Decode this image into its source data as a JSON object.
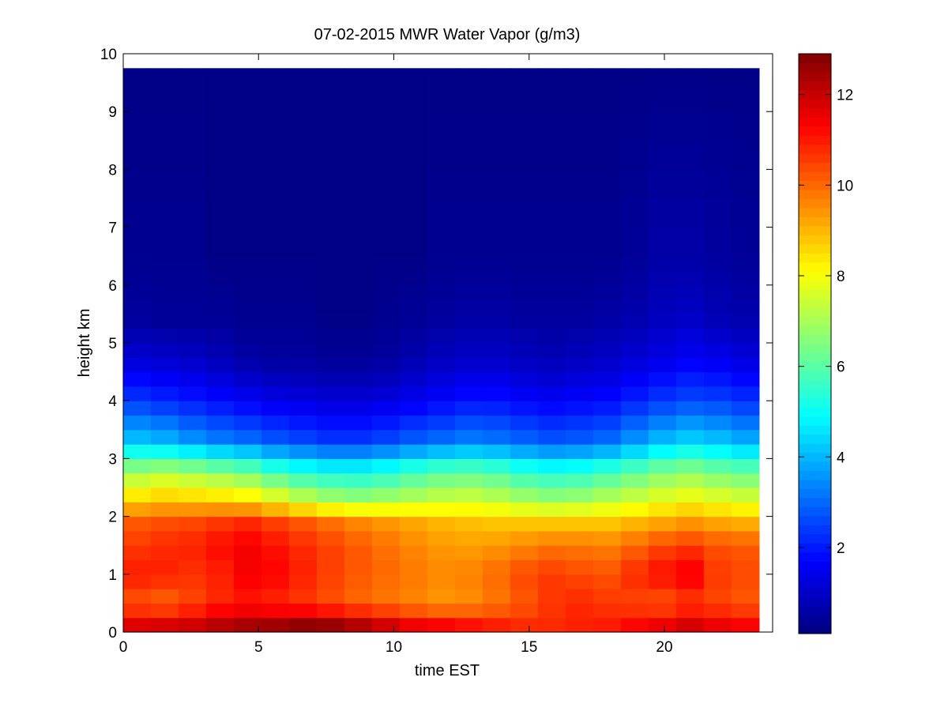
{
  "chart_data": {
    "type": "heatmap",
    "title": "07-02-2015 MWR Water Vapor (g/m3)",
    "xlabel": "time EST",
    "ylabel": "height km",
    "xlim": [
      0,
      24
    ],
    "ylim": [
      0,
      10
    ],
    "x_ticks": [
      0,
      5,
      10,
      15,
      20
    ],
    "y_ticks": [
      0,
      1,
      2,
      3,
      4,
      5,
      6,
      7,
      8,
      9,
      10
    ],
    "colorbar": {
      "colormap": "jet",
      "range": [
        0.1,
        12.9
      ],
      "ticks": [
        2,
        4,
        6,
        8,
        10,
        12
      ],
      "position": "right"
    },
    "grid": false,
    "x_edges": [
      0,
      23.5
    ],
    "data_top_km": 9.75,
    "time_columns": 23,
    "column_times_est": [
      0.0,
      1.0,
      2.0,
      3.0,
      4.0,
      5.0,
      6.0,
      7.0,
      8.0,
      9.0,
      10.0,
      11.0,
      12.0,
      13.0,
      14.0,
      15.0,
      16.0,
      17.0,
      18.0,
      19.0,
      20.0,
      21.0,
      22.0
    ],
    "height_levels_km": [
      0.0,
      0.25,
      0.5,
      0.75,
      1.0,
      1.25,
      1.5,
      1.75,
      2.0,
      2.25,
      2.5,
      2.75,
      3.0,
      3.25,
      3.5,
      3.75,
      4.0,
      4.25,
      4.5,
      4.75,
      5.0,
      5.25,
      5.5,
      5.75,
      6.0,
      6.25,
      6.5,
      6.75,
      7.0,
      7.5,
      8.0,
      8.5,
      9.0,
      9.5
    ],
    "value_profiles": {
      "note_levels_km": [
        0.1,
        0.5,
        1.0,
        1.5,
        1.9,
        2.3,
        2.8,
        3.3,
        4.0,
        4.7,
        5.4,
        6.5,
        9.75
      ],
      "columns": [
        [
          11.8,
          10.2,
          11.0,
          10.6,
          10.2,
          8.6,
          6.8,
          4.2,
          2.4,
          1.2,
          0.5,
          0.3,
          0.2
        ],
        [
          11.9,
          10.0,
          10.9,
          10.8,
          10.3,
          8.8,
          7.0,
          4.0,
          2.2,
          1.1,
          0.4,
          0.3,
          0.2
        ],
        [
          12.0,
          10.4,
          10.7,
          10.9,
          10.4,
          8.7,
          6.8,
          3.6,
          2.0,
          1.0,
          0.4,
          0.3,
          0.2
        ],
        [
          12.3,
          10.8,
          10.9,
          11.2,
          10.6,
          8.6,
          6.5,
          3.3,
          1.8,
          0.8,
          0.4,
          0.2,
          0.2
        ],
        [
          12.5,
          11.0,
          11.4,
          11.4,
          10.8,
          8.4,
          6.2,
          3.1,
          1.6,
          0.6,
          0.3,
          0.2,
          0.2
        ],
        [
          12.6,
          10.8,
          11.3,
          11.1,
          10.5,
          7.9,
          5.6,
          2.8,
          1.4,
          0.5,
          0.3,
          0.2,
          0.2
        ],
        [
          12.8,
          10.6,
          10.9,
          10.8,
          10.2,
          7.4,
          5.2,
          2.6,
          1.3,
          0.5,
          0.3,
          0.2,
          0.2
        ],
        [
          12.7,
          10.3,
          10.5,
          10.5,
          9.9,
          7.0,
          5.0,
          2.4,
          1.2,
          0.4,
          0.2,
          0.2,
          0.2
        ],
        [
          12.4,
          10.0,
          10.2,
          10.2,
          9.6,
          6.8,
          5.0,
          2.4,
          1.2,
          0.4,
          0.2,
          0.2,
          0.2
        ],
        [
          12.0,
          9.8,
          10.0,
          9.9,
          9.4,
          7.0,
          5.2,
          2.6,
          1.3,
          0.5,
          0.3,
          0.2,
          0.2
        ],
        [
          11.6,
          9.6,
          9.8,
          9.6,
          9.2,
          7.2,
          5.6,
          2.9,
          1.5,
          0.7,
          0.4,
          0.2,
          0.2
        ],
        [
          11.4,
          9.4,
          9.6,
          9.4,
          9.0,
          7.4,
          5.9,
          3.1,
          1.7,
          0.9,
          0.5,
          0.3,
          0.2
        ],
        [
          11.2,
          9.5,
          9.7,
          9.3,
          8.9,
          7.5,
          6.0,
          3.3,
          1.9,
          1.0,
          0.6,
          0.3,
          0.2
        ],
        [
          11.0,
          9.8,
          10.0,
          9.4,
          8.8,
          7.3,
          5.8,
          3.2,
          1.9,
          1.0,
          0.6,
          0.3,
          0.2
        ],
        [
          10.8,
          10.2,
          10.4,
          9.6,
          8.8,
          7.0,
          5.4,
          3.0,
          1.7,
          0.9,
          0.5,
          0.3,
          0.2
        ],
        [
          10.8,
          10.6,
          10.6,
          9.8,
          8.8,
          6.8,
          5.2,
          2.8,
          1.6,
          0.8,
          0.5,
          0.3,
          0.2
        ],
        [
          10.9,
          10.8,
          10.4,
          9.8,
          8.8,
          6.9,
          5.3,
          2.9,
          1.7,
          0.9,
          0.5,
          0.3,
          0.2
        ],
        [
          11.0,
          10.6,
          10.3,
          9.7,
          8.8,
          7.2,
          5.6,
          3.1,
          1.8,
          1.0,
          0.6,
          0.3,
          0.2
        ],
        [
          11.3,
          10.4,
          10.8,
          10.0,
          9.0,
          7.5,
          6.0,
          3.6,
          2.1,
          1.2,
          0.7,
          0.4,
          0.2
        ],
        [
          11.6,
          10.2,
          11.2,
          10.4,
          9.2,
          7.8,
          6.4,
          4.1,
          2.4,
          1.4,
          0.9,
          0.6,
          0.2
        ],
        [
          11.9,
          10.5,
          11.5,
          10.6,
          9.4,
          8.0,
          6.6,
          4.4,
          2.6,
          1.6,
          1.0,
          0.6,
          0.2
        ],
        [
          11.6,
          10.4,
          10.6,
          10.3,
          9.2,
          7.8,
          6.3,
          4.2,
          2.5,
          1.5,
          0.8,
          0.5,
          0.2
        ],
        [
          11.4,
          10.2,
          10.4,
          10.2,
          9.1,
          7.6,
          6.1,
          3.9,
          2.3,
          1.3,
          0.7,
          0.4,
          0.2
        ]
      ]
    }
  }
}
